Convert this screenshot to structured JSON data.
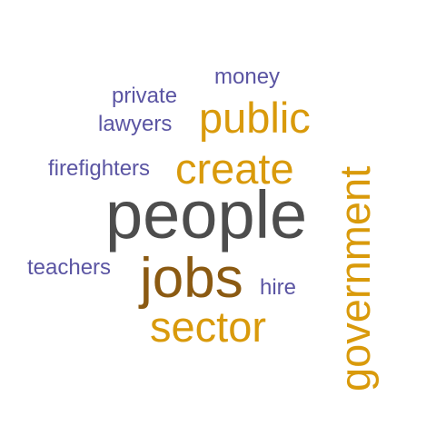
{
  "colors": {
    "background": "#ffffff",
    "dark_grey": "#4d4d4d",
    "brown": "#8b5a12",
    "gold": "#d99a0b",
    "purple": "#5b55a3"
  },
  "words": {
    "people": {
      "text": "people",
      "color": "#4d4d4d"
    },
    "jobs": {
      "text": "jobs",
      "color": "#8b5a12"
    },
    "create": {
      "text": "create",
      "color": "#d99a0b"
    },
    "public": {
      "text": "public",
      "color": "#d99a0b"
    },
    "sector": {
      "text": "sector",
      "color": "#d99a0b"
    },
    "government": {
      "text": "government",
      "color": "#d99a0b"
    },
    "money": {
      "text": "money",
      "color": "#5b55a3"
    },
    "private": {
      "text": "private",
      "color": "#5b55a3"
    },
    "lawyers": {
      "text": "lawyers",
      "color": "#5b55a3"
    },
    "firefighters": {
      "text": "firefighters",
      "color": "#5b55a3"
    },
    "teachers": {
      "text": "teachers",
      "color": "#5b55a3"
    },
    "hire": {
      "text": "hire",
      "color": "#5b55a3"
    }
  }
}
